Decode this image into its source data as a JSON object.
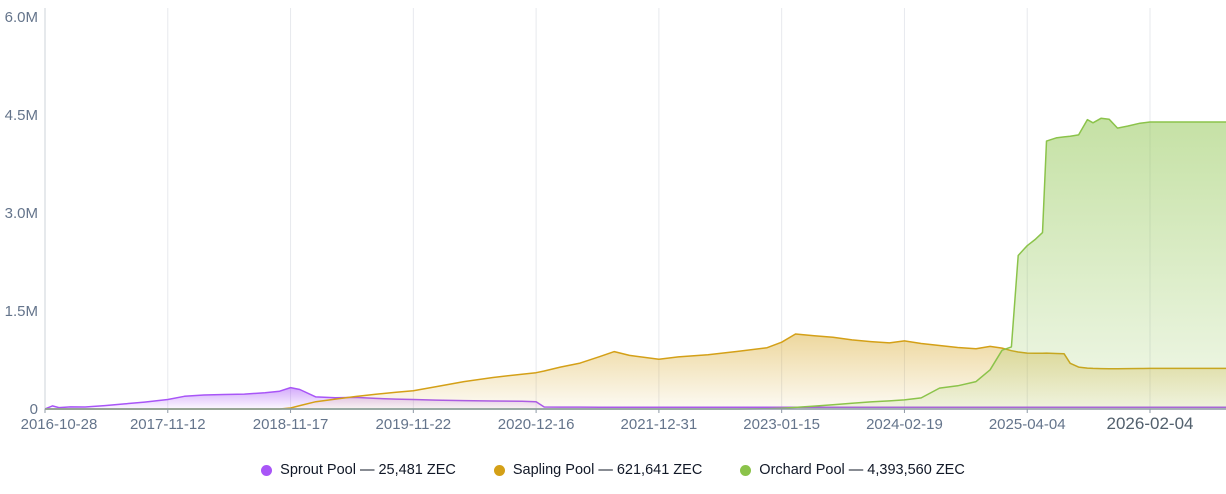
{
  "chart_data": {
    "type": "area",
    "title": "",
    "xlabel": "",
    "ylabel": "",
    "ylim": [
      0,
      6000000
    ],
    "grid": "vertical",
    "legend_position": "bottom",
    "y_ticks": [
      {
        "value": 0,
        "label": "0"
      },
      {
        "value": 1500000,
        "label": "1.5M"
      },
      {
        "value": 3000000,
        "label": "3.0M"
      },
      {
        "value": 4500000,
        "label": "4.5M"
      },
      {
        "value": 6000000,
        "label": "6.0M"
      }
    ],
    "x_ticks": [
      "2016-10-28",
      "2017-11-12",
      "2018-11-17",
      "2019-11-22",
      "2020-12-16",
      "2021-12-31",
      "2023-01-15",
      "2024-02-19",
      "2025-04-04",
      "2026-02-04"
    ],
    "x": [
      "2016-10-28",
      "2016-11-20",
      "2016-12-10",
      "2017-01-15",
      "2017-03-01",
      "2017-05-01",
      "2017-07-01",
      "2017-09-01",
      "2017-11-12",
      "2018-01-01",
      "2018-03-01",
      "2018-05-01",
      "2018-07-01",
      "2018-09-01",
      "2018-10-15",
      "2018-11-17",
      "2018-12-15",
      "2019-02-01",
      "2019-04-01",
      "2019-06-01",
      "2019-08-01",
      "2019-10-01",
      "2019-11-22",
      "2020-02-01",
      "2020-05-01",
      "2020-08-01",
      "2020-11-01",
      "2020-12-16",
      "2021-01-10",
      "2021-03-01",
      "2021-05-01",
      "2021-07-01",
      "2021-08-15",
      "2021-10-01",
      "2021-12-31",
      "2022-03-01",
      "2022-06-01",
      "2022-09-01",
      "2022-12-01",
      "2023-01-15",
      "2023-03-01",
      "2023-05-01",
      "2023-07-01",
      "2023-09-01",
      "2023-11-01",
      "2024-01-01",
      "2024-02-19",
      "2024-04-15",
      "2024-06-15",
      "2024-08-15",
      "2024-10-15",
      "2024-12-01",
      "2025-01-10",
      "2025-02-10",
      "2025-03-05",
      "2025-03-25",
      "2025-04-04",
      "2025-04-25",
      "2025-05-12",
      "2025-05-22",
      "2025-06-15",
      "2025-07-05",
      "2025-07-20",
      "2025-08-10",
      "2025-09-01",
      "2025-09-15",
      "2025-10-05",
      "2025-10-25",
      "2025-11-15",
      "2025-12-10",
      "2026-01-10",
      "2026-02-04"
    ],
    "series": [
      {
        "id": "sprout",
        "name": "Sprout Pool",
        "current_value": "25,481 ZEC",
        "legend_label": "Sprout Pool — 25,481 ZEC",
        "color": "#a855f7",
        "values": [
          2000,
          48000,
          22000,
          32000,
          30000,
          52000,
          78000,
          105000,
          145000,
          195000,
          215000,
          222000,
          228000,
          248000,
          272000,
          328000,
          298000,
          185000,
          172000,
          178000,
          162000,
          152000,
          146000,
          136000,
          129000,
          123000,
          118000,
          112000,
          30000,
          29000,
          28600,
          28300,
          28100,
          27900,
          27600,
          27300,
          27100,
          26900,
          26700,
          26500,
          26400,
          26300,
          26200,
          26100,
          26050,
          26000,
          25950,
          25900,
          25850,
          25800,
          25750,
          25700,
          25660,
          25630,
          25610,
          25590,
          25570,
          25560,
          25550,
          25540,
          25530,
          25520,
          25515,
          25510,
          25505,
          25500,
          25495,
          25492,
          25488,
          25485,
          25483,
          25481
        ]
      },
      {
        "id": "sapling",
        "name": "Sapling Pool",
        "current_value": "621,641 ZEC",
        "legend_label": "Sapling Pool — 621,641 ZEC",
        "color": "#d4a017",
        "values": [
          0,
          0,
          0,
          0,
          0,
          0,
          0,
          0,
          0,
          0,
          0,
          0,
          0,
          0,
          0,
          15000,
          52000,
          112000,
          152000,
          192000,
          226000,
          256000,
          278000,
          342000,
          420000,
          482000,
          532000,
          556000,
          582000,
          642000,
          702000,
          802000,
          878000,
          820000,
          762000,
          798000,
          830000,
          882000,
          938000,
          1022000,
          1148000,
          1120000,
          1098000,
          1058000,
          1032000,
          1012000,
          1042000,
          1002000,
          972000,
          942000,
          922000,
          958000,
          932000,
          892000,
          872000,
          862000,
          856000,
          852000,
          854000,
          856000,
          850000,
          845000,
          700000,
          642000,
          626000,
          621000,
          618000,
          617000,
          616000,
          618000,
          620000,
          621641
        ]
      },
      {
        "id": "orchard",
        "name": "Orchard Pool",
        "current_value": "4,393,560 ZEC",
        "legend_label": "Orchard Pool — 4,393,560 ZEC",
        "color": "#8bc34a",
        "values": [
          0,
          0,
          0,
          0,
          0,
          0,
          0,
          0,
          0,
          0,
          0,
          0,
          0,
          0,
          0,
          0,
          0,
          0,
          0,
          0,
          0,
          0,
          0,
          0,
          0,
          0,
          0,
          0,
          0,
          0,
          0,
          0,
          0,
          0,
          0,
          0,
          0,
          0,
          4000,
          12000,
          24000,
          45000,
          65000,
          88000,
          108000,
          124000,
          140000,
          170000,
          320000,
          355000,
          420000,
          600000,
          900000,
          950000,
          2350000,
          2450000,
          2500000,
          2600000,
          2700000,
          4100000,
          4150000,
          4165000,
          4175000,
          4195000,
          4430000,
          4380000,
          4450000,
          4435000,
          4300000,
          4330000,
          4375000,
          4393560
        ]
      }
    ],
    "colors": {
      "grid": "#e7e9ee",
      "axis": "#8d99a6",
      "tick_label": "#64748b",
      "legend_text": "#111827"
    }
  }
}
